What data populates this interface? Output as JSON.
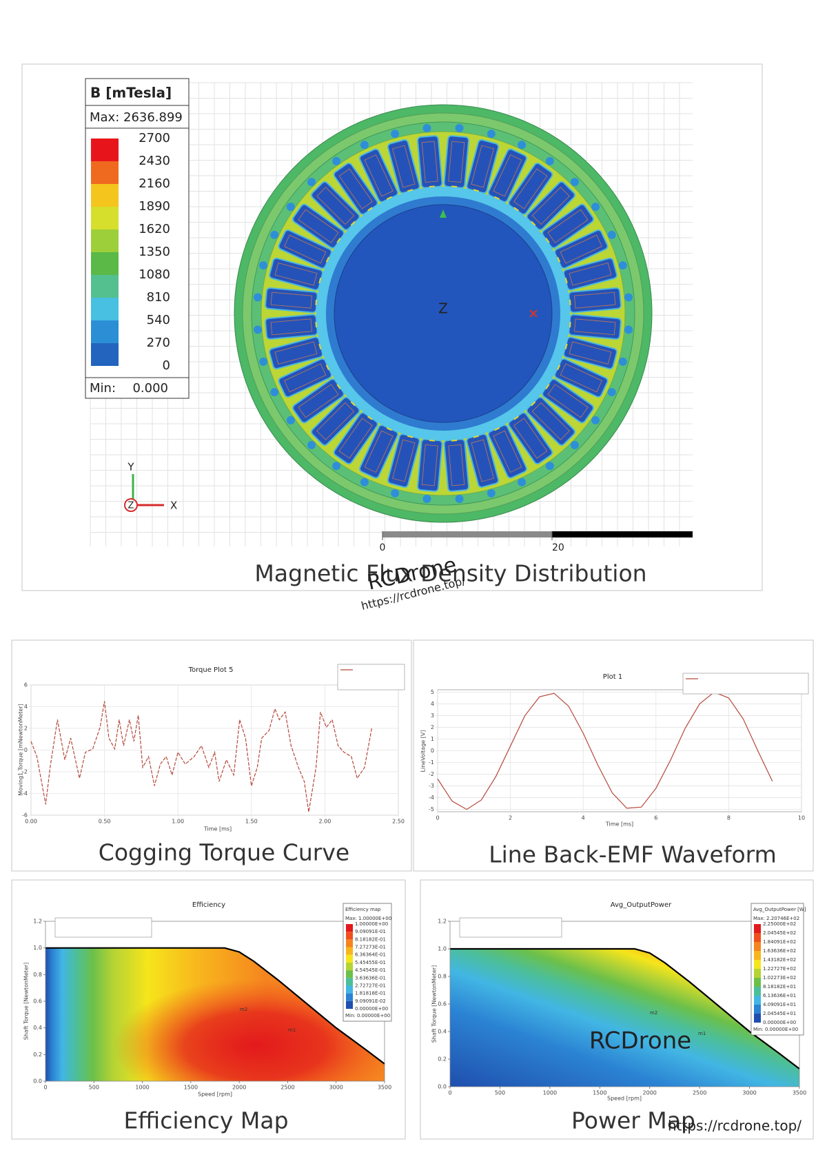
{
  "flux_figure": {
    "legend_title": "B [mTesla]",
    "max_label": "Max: 2636.899",
    "levels": [
      2700,
      2430,
      2160,
      1890,
      1620,
      1350,
      1080,
      810,
      540,
      270,
      0
    ],
    "colors": [
      "#e8141c",
      "#ef6a1f",
      "#f4c51d",
      "#d5df2c",
      "#9dcf3a",
      "#5ab947",
      "#55c08f",
      "#47c0e2",
      "#2c8fd6",
      "#2264be"
    ],
    "min_prefix": "Min:",
    "min_value": "0.000",
    "scale_bar_ticks": [
      0,
      20
    ],
    "axis_y": "Y",
    "axis_z": "Z",
    "axis_x": "X",
    "center_label": "Z",
    "caption": "Magnetic Flux Density Distribution"
  },
  "watermarks": [
    "RCDrone",
    "https://rcdrone.top/",
    "RCDrone",
    "https://rcdrone.top/"
  ],
  "chart_data": [
    {
      "type": "line",
      "title": "Torque Plot 5",
      "caption": "Cogging Torque Curve",
      "xlabel": "Time [ms]",
      "ylabel": "Moving1.Torque [mNewtonMeter]",
      "color": "#b5473a",
      "grid": true,
      "x": [
        0,
        0.04,
        0.1,
        0.13,
        0.18,
        0.23,
        0.27,
        0.33,
        0.37,
        0.42,
        0.47,
        0.5,
        0.53,
        0.57,
        0.6,
        0.63,
        0.67,
        0.7,
        0.73,
        0.76,
        0.8,
        0.84,
        0.88,
        0.92,
        0.96,
        1.0,
        1.05,
        1.11,
        1.16,
        1.21,
        1.25,
        1.28,
        1.33,
        1.38,
        1.42,
        1.46,
        1.5,
        1.54,
        1.57,
        1.62,
        1.66,
        1.69,
        1.73,
        1.77,
        1.82,
        1.86,
        1.89,
        1.94,
        1.97,
        2.01,
        2.05,
        2.09,
        2.13,
        2.18,
        2.22,
        2.27,
        2.32
      ],
      "values": [
        0.8,
        -0.6,
        -5.0,
        -1.6,
        2.8,
        -0.9,
        1.1,
        -2.6,
        -0.2,
        0.1,
        2.1,
        4.5,
        1.1,
        0.1,
        2.8,
        0.4,
        2.8,
        0.8,
        3.2,
        -1.6,
        -0.6,
        -3.3,
        -1.3,
        -0.6,
        -2.3,
        -0.2,
        -1.3,
        -0.6,
        0.4,
        -1.6,
        -0.2,
        -2.9,
        -0.9,
        -2.3,
        2.8,
        1.1,
        -3.3,
        -1.6,
        1.1,
        1.8,
        3.8,
        2.8,
        3.5,
        0.4,
        -1.6,
        -2.9,
        -5.7,
        -1.6,
        3.5,
        2.1,
        2.8,
        0.4,
        -0.2,
        -0.6,
        -2.6,
        -1.6,
        2.1
      ],
      "xlim": [
        0,
        2.5
      ],
      "ylim": [
        -6,
        6
      ],
      "xticks": [
        {
          "value": 0,
          "label": "0.00"
        },
        {
          "value": 0.5,
          "label": "0.50"
        },
        {
          "value": 1,
          "label": "1.00"
        },
        {
          "value": 1.5,
          "label": "1.50"
        },
        {
          "value": 2,
          "label": "2.00"
        },
        {
          "value": 2.5,
          "label": "2.50"
        }
      ],
      "yticks": [
        -6,
        -4,
        -2,
        0,
        2,
        4,
        6
      ]
    },
    {
      "type": "line",
      "title": "Plot 1",
      "caption": "Line Back-EMF Waveform",
      "xlabel": "Time [ms]",
      "ylabel": "LineVoltage [V]",
      "color": "#b5473a",
      "grid": true,
      "x": [
        0,
        0.4,
        0.8,
        1.2,
        1.6,
        2.0,
        2.4,
        2.8,
        3.2,
        3.6,
        4.0,
        4.4,
        4.8,
        5.2,
        5.6,
        6.0,
        6.4,
        6.8,
        7.2,
        7.6,
        8.0,
        8.4,
        8.8,
        9.2
      ],
      "values": [
        -2.4,
        -4.3,
        -5.0,
        -4.2,
        -2.2,
        0.4,
        3.0,
        4.6,
        4.9,
        3.8,
        1.5,
        -1.2,
        -3.6,
        -4.9,
        -4.8,
        -3.2,
        -0.8,
        1.9,
        4.0,
        5.0,
        4.5,
        2.7,
        0.0,
        -2.6
      ],
      "xlim": [
        0,
        10
      ],
      "ylim": [
        -5.2,
        5.2
      ],
      "xticks": [
        0,
        2,
        4,
        6,
        8,
        10
      ],
      "yticks": [
        -5,
        -4,
        -3,
        -2,
        -1,
        0,
        1,
        2,
        3,
        4,
        5
      ]
    },
    {
      "type": "heatmap",
      "title": "Efficiency",
      "caption": "Efficiency Map",
      "xlabel": "Speed [rpm]",
      "ylabel": "Shaft Torque [NewtonMeter]",
      "color": "#000000",
      "x": [
        0,
        1850,
        2000,
        2150,
        2400,
        2700,
        3000,
        3300,
        3500
      ],
      "values": [
        1.0,
        1.0,
        0.97,
        0.9,
        0.76,
        0.58,
        0.4,
        0.24,
        0.13
      ],
      "markers": [
        "m2",
        "m1"
      ],
      "xlim": [
        0,
        3500
      ],
      "ylim": [
        0,
        1.2
      ],
      "xticks": [
        0,
        500,
        1000,
        1500,
        2000,
        2500,
        3000,
        3500
      ],
      "yticks": [
        {
          "value": 0,
          "label": "0.0"
        },
        {
          "value": 0.2,
          "label": "0.2"
        },
        {
          "value": 0.4,
          "label": "0.4"
        },
        {
          "value": 0.6,
          "label": "0.6"
        },
        {
          "value": 0.8,
          "label": "0.8"
        },
        {
          "value": 1.0,
          "label": "1.0"
        },
        {
          "value": 1.2,
          "label": "1.2"
        }
      ],
      "colorbar": {
        "title": "Efficiency map",
        "max": "Max: 1.00000E+00",
        "min": "Min: 0.00000E+00",
        "labels": [
          "1.00000E+00",
          "9.09091E-01",
          "8.18182E-01",
          "7.27273E-01",
          "6.36364E-01",
          "5.45455E-01",
          "4.54545E-01",
          "3.63636E-01",
          "2.72727E-01",
          "1.81818E-01",
          "9.09091E-02",
          "0.00000E+00"
        ],
        "colors": [
          "#e31a1c",
          "#f0501e",
          "#f5851f",
          "#f8b61d",
          "#f5e51b",
          "#b5d334",
          "#6cc04a",
          "#4cbf9a",
          "#42b6e4",
          "#2b83d3",
          "#1f4fae"
        ]
      }
    },
    {
      "type": "heatmap",
      "title": "Avg_OutputPower",
      "caption": "Power Map",
      "xlabel": "Speed [rpm]",
      "ylabel": "Shaft Torque [NewtonMeter]",
      "color": "#000000",
      "x": [
        0,
        1850,
        2000,
        2150,
        2400,
        2700,
        3000,
        3300,
        3500
      ],
      "values": [
        1.0,
        1.0,
        0.97,
        0.9,
        0.76,
        0.58,
        0.4,
        0.24,
        0.13
      ],
      "markers": [
        "m2",
        "m1"
      ],
      "xlim": [
        0,
        3500
      ],
      "ylim": [
        0,
        1.2
      ],
      "xticks": [
        0,
        500,
        1000,
        1500,
        2000,
        2500,
        3000,
        3500
      ],
      "yticks": [
        {
          "value": 0,
          "label": "0.0"
        },
        {
          "value": 0.2,
          "label": "0.2"
        },
        {
          "value": 0.4,
          "label": "0.4"
        },
        {
          "value": 0.6,
          "label": "0.6"
        },
        {
          "value": 0.8,
          "label": "0.8"
        },
        {
          "value": 1.0,
          "label": "1.0"
        },
        {
          "value": 1.2,
          "label": "1.2"
        }
      ],
      "colorbar": {
        "title": "Avg_OutputPower [W]",
        "max": "Max: 2.20746E+02",
        "min": "Min: 0.00000E+00",
        "labels": [
          "2.25000E+02",
          "2.04545E+02",
          "1.84091E+02",
          "1.63636E+02",
          "1.43182E+02",
          "1.22727E+02",
          "1.02273E+02",
          "8.18182E+01",
          "6.13636E+01",
          "4.09091E+01",
          "2.04545E+01",
          "0.00000E+00"
        ],
        "colors": [
          "#e31a1c",
          "#f0501e",
          "#f5851f",
          "#f8b61d",
          "#f5e51b",
          "#b5d334",
          "#6cc04a",
          "#4cbf9a",
          "#42b6e4",
          "#2b83d3",
          "#1f4fae"
        ]
      }
    }
  ]
}
